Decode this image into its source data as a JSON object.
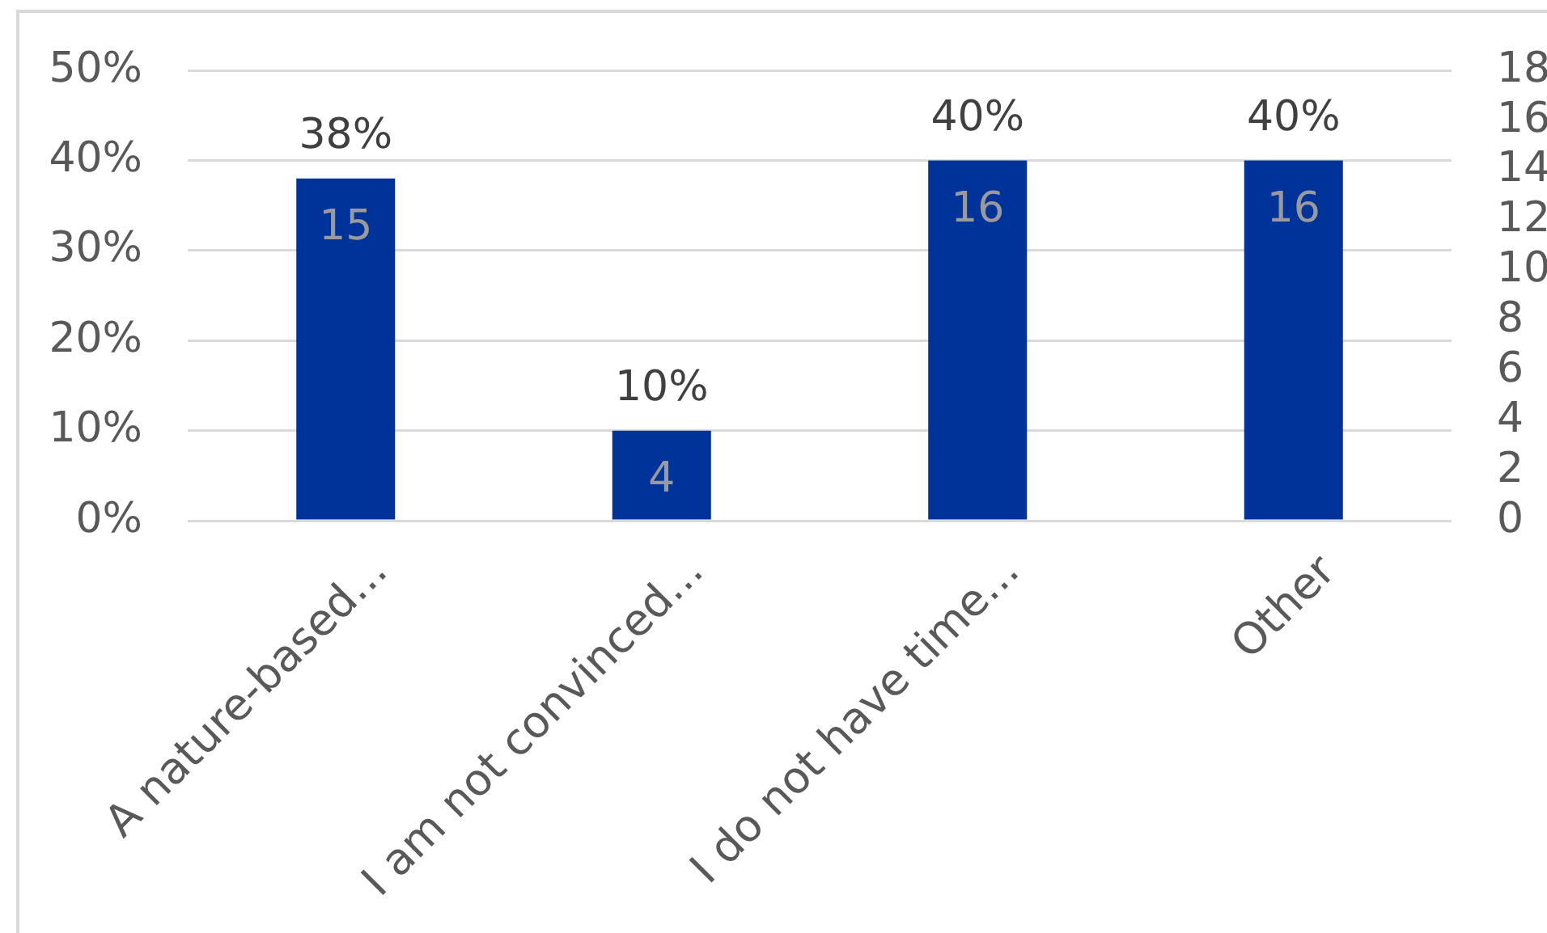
{
  "chart_data": {
    "type": "bar",
    "categories": [
      "A nature-based...",
      "I am not convinced...",
      "I do not have time...",
      "Other"
    ],
    "values": [
      38,
      10,
      40,
      40
    ],
    "color": "#003399",
    "value_labels": [
      "38%",
      "10%",
      "40%",
      "40%"
    ],
    "ylim": [
      0,
      50
    ],
    "yticks": [
      {
        "value": 0,
        "label": "0%"
      },
      {
        "value": 10,
        "label": "10%"
      },
      {
        "value": 20,
        "label": "20%"
      },
      {
        "value": 30,
        "label": "30%"
      },
      {
        "value": 40,
        "label": "40%"
      },
      {
        "value": 50,
        "label": "50%"
      }
    ],
    "y2lim": [
      0,
      18
    ],
    "y2ticks": [
      0,
      2,
      4,
      6,
      8,
      10,
      12,
      14,
      16,
      18
    ],
    "annotations": [
      {
        "text": "15",
        "x": "A nature-based...",
        "y": 38
      },
      {
        "text": "4",
        "x": "I am not convinced...",
        "y": 10
      },
      {
        "text": "16",
        "x": "I do not have time...",
        "y": 40
      },
      {
        "text": "16",
        "x": "Other",
        "y": 40
      }
    ],
    "grid": "y"
  }
}
